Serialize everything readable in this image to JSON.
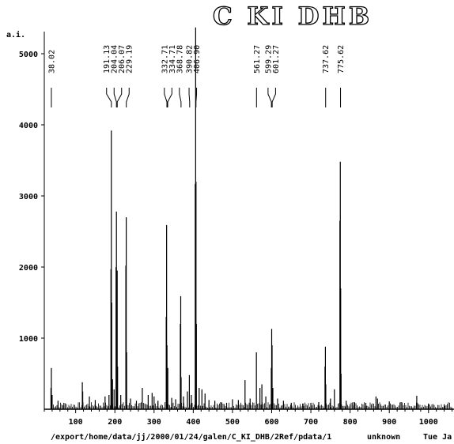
{
  "chart_data": {
    "type": "line",
    "title": "C KI DHB",
    "ylabel": "a.i.",
    "xlabel": "",
    "xlim": [
      20,
      1065
    ],
    "ylim": [
      0,
      5400
    ],
    "x_ticks": [
      100,
      200,
      300,
      400,
      500,
      600,
      700,
      800,
      900,
      1000
    ],
    "y_ticks": [
      1000,
      2000,
      3000,
      4000,
      5000
    ],
    "grid": false,
    "legend": "none",
    "peak_labels": [
      {
        "label": "38.02",
        "x": 38.02
      },
      {
        "label": "191.13",
        "x": 191.13
      },
      {
        "label": "204.04",
        "x": 204.04
      },
      {
        "label": "206.07",
        "x": 206.07
      },
      {
        "label": "229.19",
        "x": 229.19
      },
      {
        "label": "332.71",
        "x": 332.71
      },
      {
        "label": "334.71",
        "x": 334.71
      },
      {
        "label": "368.78",
        "x": 368.78
      },
      {
        "label": "390.82",
        "x": 390.82
      },
      {
        "label": "406.90",
        "x": 406.9
      },
      {
        "label": "561.27",
        "x": 561.27
      },
      {
        "label": "599.29",
        "x": 599.29
      },
      {
        "label": "601.27",
        "x": 601.27
      },
      {
        "label": "737.62",
        "x": 737.62
      },
      {
        "label": "775.62",
        "x": 775.62
      }
    ],
    "peaks": [
      {
        "x": 38,
        "y": 580
      },
      {
        "x": 37,
        "y": 300
      },
      {
        "x": 40,
        "y": 200
      },
      {
        "x": 55,
        "y": 120
      },
      {
        "x": 70,
        "y": 90
      },
      {
        "x": 117,
        "y": 380
      },
      {
        "x": 118,
        "y": 250
      },
      {
        "x": 135,
        "y": 180
      },
      {
        "x": 150,
        "y": 130
      },
      {
        "x": 175,
        "y": 180
      },
      {
        "x": 185,
        "y": 200
      },
      {
        "x": 190,
        "y": 1970
      },
      {
        "x": 191,
        "y": 3920
      },
      {
        "x": 192,
        "y": 1500
      },
      {
        "x": 194,
        "y": 420
      },
      {
        "x": 198,
        "y": 280
      },
      {
        "x": 203,
        "y": 2000
      },
      {
        "x": 204,
        "y": 2780
      },
      {
        "x": 206,
        "y": 1950
      },
      {
        "x": 207,
        "y": 600
      },
      {
        "x": 215,
        "y": 200
      },
      {
        "x": 228,
        "y": 2020
      },
      {
        "x": 229,
        "y": 2700
      },
      {
        "x": 230,
        "y": 800
      },
      {
        "x": 240,
        "y": 150
      },
      {
        "x": 255,
        "y": 120
      },
      {
        "x": 270,
        "y": 300
      },
      {
        "x": 285,
        "y": 200
      },
      {
        "x": 295,
        "y": 230
      },
      {
        "x": 300,
        "y": 180
      },
      {
        "x": 310,
        "y": 120
      },
      {
        "x": 331,
        "y": 1300
      },
      {
        "x": 332,
        "y": 2590
      },
      {
        "x": 333,
        "y": 900
      },
      {
        "x": 335,
        "y": 580
      },
      {
        "x": 345,
        "y": 160
      },
      {
        "x": 355,
        "y": 140
      },
      {
        "x": 367,
        "y": 1200
      },
      {
        "x": 368,
        "y": 1590
      },
      {
        "x": 369,
        "y": 450
      },
      {
        "x": 375,
        "y": 180
      },
      {
        "x": 385,
        "y": 250
      },
      {
        "x": 390,
        "y": 480
      },
      {
        "x": 395,
        "y": 200
      },
      {
        "x": 405,
        "y": 3170
      },
      {
        "x": 406,
        "y": 5370
      },
      {
        "x": 407,
        "y": 3200
      },
      {
        "x": 408,
        "y": 1200
      },
      {
        "x": 415,
        "y": 300
      },
      {
        "x": 422,
        "y": 280
      },
      {
        "x": 430,
        "y": 220
      },
      {
        "x": 440,
        "y": 130
      },
      {
        "x": 455,
        "y": 120
      },
      {
        "x": 470,
        "y": 100
      },
      {
        "x": 485,
        "y": 90
      },
      {
        "x": 500,
        "y": 140
      },
      {
        "x": 515,
        "y": 130
      },
      {
        "x": 532,
        "y": 410
      },
      {
        "x": 545,
        "y": 150
      },
      {
        "x": 561,
        "y": 800
      },
      {
        "x": 570,
        "y": 300
      },
      {
        "x": 575,
        "y": 350
      },
      {
        "x": 585,
        "y": 180
      },
      {
        "x": 599,
        "y": 580
      },
      {
        "x": 600,
        "y": 1130
      },
      {
        "x": 601,
        "y": 900
      },
      {
        "x": 603,
        "y": 300
      },
      {
        "x": 615,
        "y": 150
      },
      {
        "x": 630,
        "y": 120
      },
      {
        "x": 650,
        "y": 90
      },
      {
        "x": 680,
        "y": 80
      },
      {
        "x": 700,
        "y": 90
      },
      {
        "x": 720,
        "y": 100
      },
      {
        "x": 736,
        "y": 600
      },
      {
        "x": 737,
        "y": 880
      },
      {
        "x": 738,
        "y": 350
      },
      {
        "x": 750,
        "y": 150
      },
      {
        "x": 760,
        "y": 280
      },
      {
        "x": 774,
        "y": 2650
      },
      {
        "x": 775,
        "y": 3480
      },
      {
        "x": 776,
        "y": 1700
      },
      {
        "x": 777,
        "y": 500
      },
      {
        "x": 790,
        "y": 120
      },
      {
        "x": 810,
        "y": 100
      },
      {
        "x": 840,
        "y": 90
      },
      {
        "x": 866,
        "y": 180
      },
      {
        "x": 870,
        "y": 150
      },
      {
        "x": 900,
        "y": 110
      },
      {
        "x": 930,
        "y": 100
      },
      {
        "x": 970,
        "y": 190
      },
      {
        "x": 1000,
        "y": 80
      },
      {
        "x": 1040,
        "y": 70
      }
    ]
  },
  "footer": {
    "path": "/export/home/data/jj/2000/01/24/galen/C_KI_DHB/2Ref/pdata/1",
    "status": "unknown",
    "date_fragment": "Tue Ja"
  }
}
